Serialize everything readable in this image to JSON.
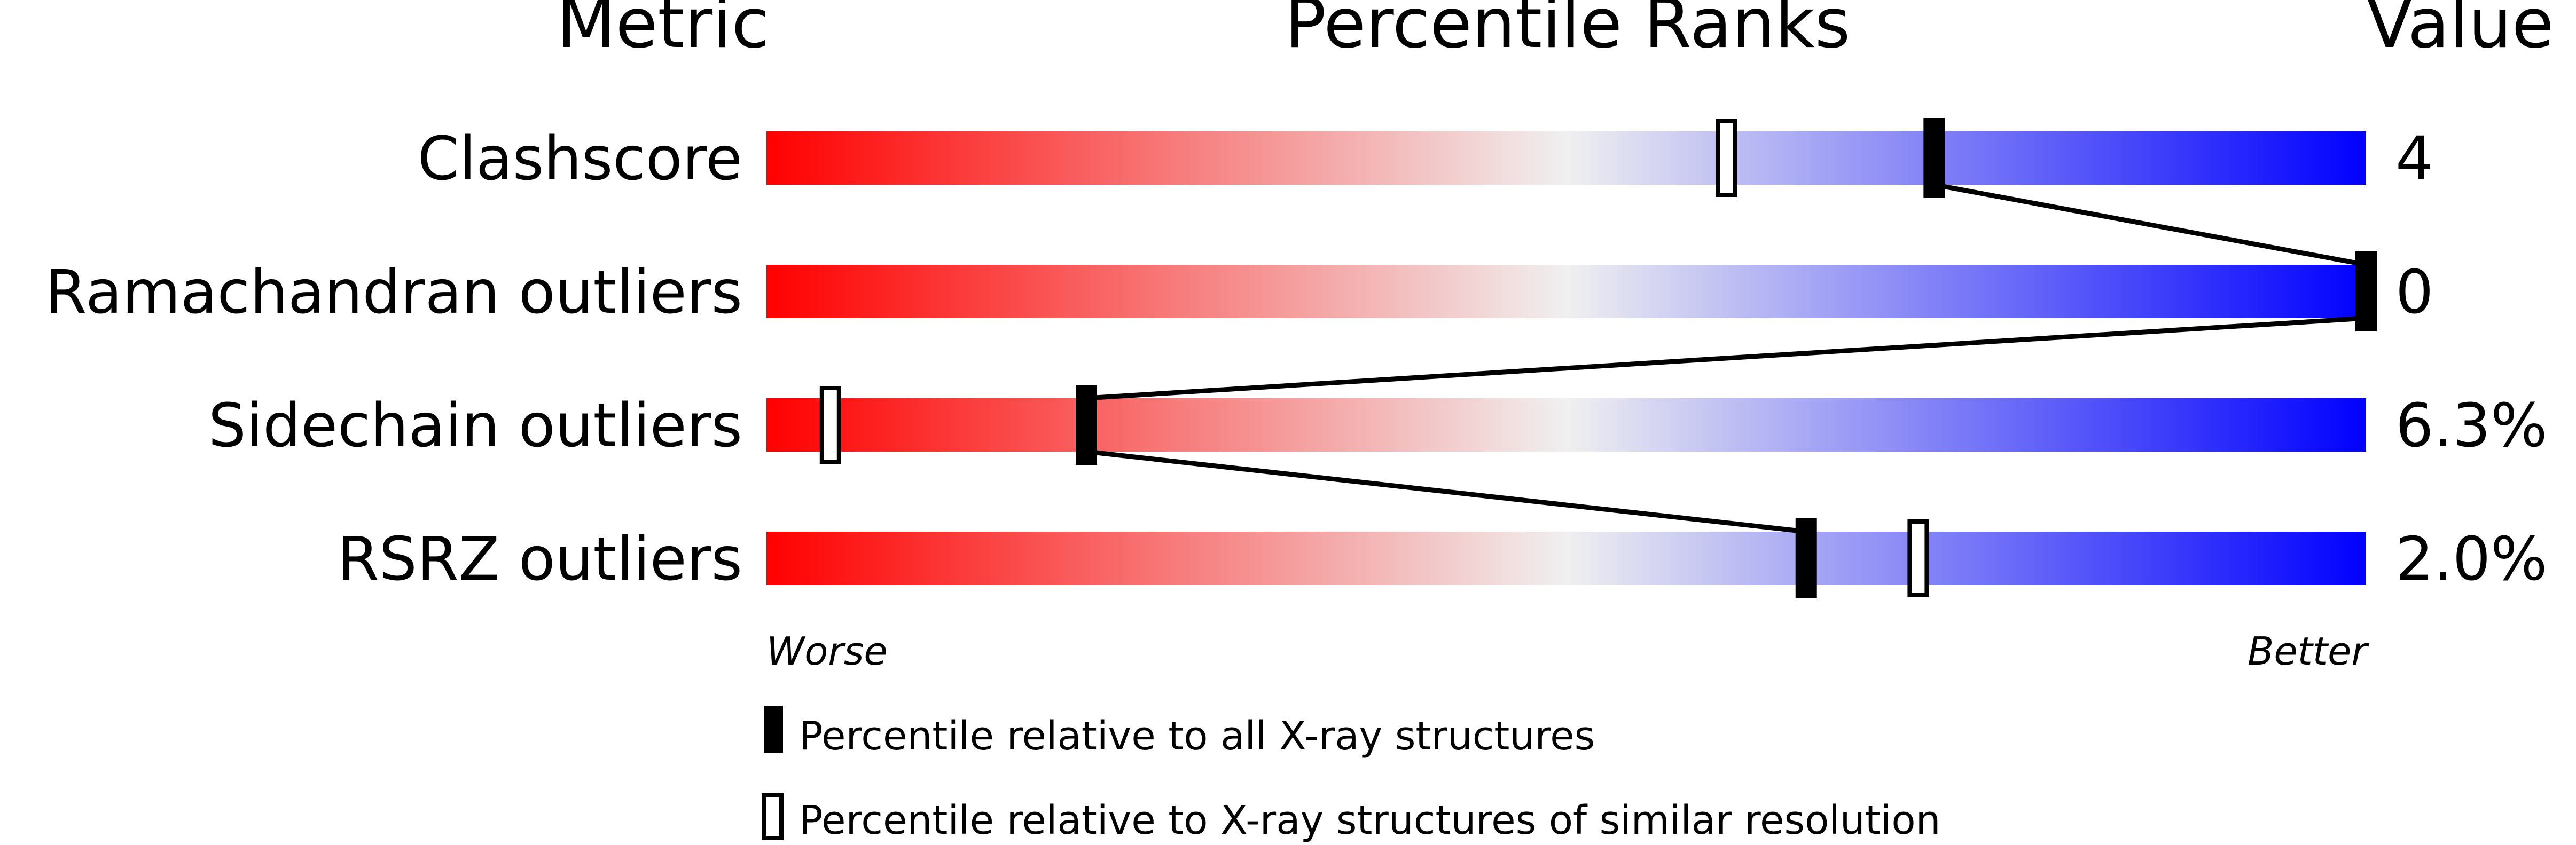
{
  "headers": {
    "metric": "Metric",
    "percentile": "Percentile Ranks",
    "value": "Value"
  },
  "scale": {
    "worse": "Worse",
    "better": "Better",
    "gradient_colors": [
      "#ff0000",
      "#f0f0f0",
      "#0000ff"
    ]
  },
  "legend": {
    "all": "Percentile relative to all X-ray structures",
    "similar": "Percentile relative to X-ray structures of similar resolution"
  },
  "chart_data": {
    "type": "bar",
    "categories": [
      "Clashscore",
      "Ramachandran outliers",
      "Sidechain outliers",
      "RSRZ outliers"
    ],
    "values": [
      "4",
      "0",
      "6.3%",
      "2.0%"
    ],
    "series": [
      {
        "marker": "filled",
        "values": [
          73,
          100,
          20,
          65
        ]
      },
      {
        "marker": "hollow",
        "values": [
          60,
          100,
          4,
          72
        ]
      }
    ],
    "xlim": [
      0,
      100
    ]
  }
}
